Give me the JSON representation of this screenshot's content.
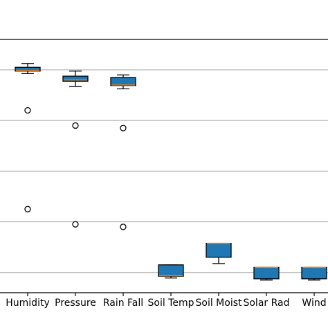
{
  "chart_data": {
    "type": "box",
    "title": "",
    "xlabel": "",
    "ylabel": "",
    "categories": [
      "Humidity",
      "Pressure",
      "Rain Fall",
      "Soil Temp",
      "Soil Moist",
      "Solar Rad",
      "Wind"
    ],
    "boxes": [
      {
        "whisker_low": 78.5,
        "q1": 79.5,
        "median": 79.7,
        "q3": 81.0,
        "whisker_high": 82.5,
        "outliers": [
          64.0,
          25.0
        ]
      },
      {
        "whisker_low": 73.5,
        "q1": 75.5,
        "median": 76.0,
        "q3": 77.5,
        "whisker_high": 79.5,
        "outliers": [
          58.0,
          19.0
        ]
      },
      {
        "whisker_low": 72.5,
        "q1": 73.8,
        "median": 74.0,
        "q3": 77.0,
        "whisker_high": 78.0,
        "outliers": [
          57.0,
          18.0
        ]
      },
      {
        "whisker_low": -2.2,
        "q1": -1.5,
        "median": -1.3,
        "q3": 3.0,
        "whisker_high": 3.0,
        "outliers": []
      },
      {
        "whisker_low": 3.5,
        "q1": 6.0,
        "median": 11.5,
        "q3": 11.5,
        "whisker_high": 11.5,
        "outliers": []
      },
      {
        "whisker_low": -3.0,
        "q1": -2.5,
        "median": 2.0,
        "q3": 2.0,
        "whisker_high": 2.0,
        "outliers": []
      },
      {
        "whisker_low": -3.0,
        "q1": -2.5,
        "median": 2.0,
        "q3": 2.0,
        "whisker_high": 2.0,
        "outliers": []
      }
    ],
    "ylim": [
      -8,
      92
    ],
    "grid": "horizontal",
    "gridlines": [
      0,
      20,
      40,
      60,
      80
    ],
    "box_color": "#1f77b4",
    "median_color": "#ff7f0e",
    "grid_color": "#b0b0b0"
  }
}
